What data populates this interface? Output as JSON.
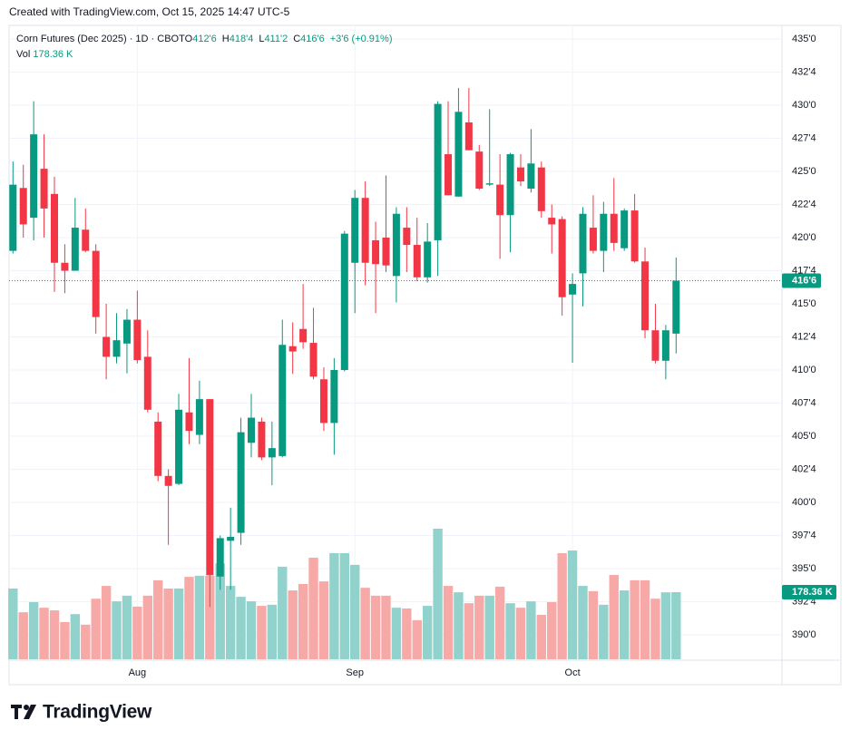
{
  "header": {
    "created": "Created with TradingView.com, Oct 15, 2025 14:47 UTC-5",
    "brand": "TradingView"
  },
  "chart_data": {
    "type": "candlestick",
    "title": "Corn Futures (Dec 2025) · 1D · CBOT",
    "legend": [
      {
        "label": "O",
        "value": "412'6"
      },
      {
        "label": "H",
        "value": "418'4"
      },
      {
        "label": "L",
        "value": "411'2"
      },
      {
        "label": "C",
        "value": "416'6"
      }
    ],
    "change": "+3'6 (+0.91%)",
    "volume_label": "Vol",
    "volume_value": "178.36 K",
    "categories": [
      null,
      null,
      null,
      null,
      null,
      null,
      null,
      null,
      null,
      null,
      null,
      null,
      "Aug",
      null,
      null,
      null,
      null,
      null,
      null,
      null,
      null,
      null,
      null,
      null,
      null,
      null,
      null,
      null,
      null,
      null,
      null,
      null,
      null,
      "Sep",
      null,
      null,
      null,
      null,
      null,
      null,
      null,
      null,
      null,
      null,
      null,
      null,
      null,
      null,
      null,
      null,
      null,
      null,
      null,
      null,
      "Oct",
      null,
      null,
      null,
      null,
      null,
      null,
      null,
      null,
      null,
      null
    ],
    "open": [
      419.0,
      423.75,
      421.5,
      425.2,
      423.3,
      418.1,
      417.5,
      420.6,
      419.0,
      412.5,
      411.0,
      412.0,
      413.8,
      411.0,
      406.1,
      402.0,
      401.4,
      406.8,
      405.1,
      407.8,
      394.4,
      397.1,
      397.7,
      404.5,
      406.1,
      403.4,
      403.5,
      411.8,
      413.1,
      412.05,
      409.3,
      406.0,
      410.0,
      418.1,
      423.0,
      419.8,
      420.0,
      417.1,
      420.75,
      419.45,
      417.0,
      419.8,
      426.3,
      423.1,
      428.7,
      426.5,
      424.0,
      424.0,
      421.7,
      425.3,
      423.7,
      425.3,
      421.5,
      421.4,
      415.7,
      417.3,
      420.75,
      419.0,
      421.8,
      419.2,
      422.05,
      418.2,
      413.0,
      410.7,
      412.75
    ],
    "high": [
      425.75,
      425.5,
      430.3,
      427.8,
      424.6,
      419.5,
      423.0,
      422.2,
      419.5,
      415.0,
      414.3,
      414.6,
      416.0,
      413.0,
      406.8,
      402.5,
      408.2,
      410.9,
      409.2,
      407.8,
      397.5,
      399.6,
      406.4,
      408.2,
      406.4,
      406.1,
      413.8,
      413.6,
      416.5,
      414.7,
      410.2,
      410.9,
      420.5,
      423.6,
      424.25,
      421.2,
      424.7,
      422.3,
      422.3,
      421.5,
      421.1,
      430.3,
      430.3,
      431.3,
      431.3,
      427.0,
      429.7,
      426.3,
      426.4,
      426.3,
      428.2,
      425.75,
      422.5,
      421.6,
      417.3,
      422.3,
      423.2,
      422.7,
      424.5,
      422.2,
      423.3,
      419.25,
      415.0,
      413.4,
      418.5
    ],
    "low": [
      418.8,
      420.0,
      419.8,
      420.0,
      415.9,
      415.8,
      417.5,
      418.9,
      412.75,
      409.3,
      410.5,
      409.75,
      410.5,
      406.8,
      401.6,
      396.8,
      401.3,
      404.4,
      404.4,
      392.1,
      393.4,
      393.4,
      396.8,
      403.4,
      403.2,
      401.3,
      403.4,
      409.7,
      411.6,
      409.3,
      405.4,
      403.6,
      409.9,
      414.3,
      416.4,
      414.3,
      417.4,
      415.1,
      417.4,
      416.7,
      416.6,
      417.1,
      423.2,
      423.1,
      426.6,
      423.6,
      423.9,
      418.4,
      418.9,
      423.9,
      423.4,
      421.5,
      418.8,
      414.1,
      410.55,
      414.8,
      418.8,
      417.4,
      419.0,
      419.0,
      418.1,
      412.4,
      410.5,
      409.3,
      411.25
    ],
    "close": [
      424.0,
      421.0,
      427.8,
      422.2,
      418.1,
      417.5,
      420.75,
      419.0,
      414.0,
      411.0,
      412.25,
      413.8,
      410.75,
      407.0,
      402.0,
      401.25,
      407.0,
      405.4,
      407.8,
      394.5,
      397.3,
      397.4,
      405.3,
      406.4,
      403.4,
      404.1,
      411.9,
      411.4,
      412.1,
      409.5,
      406.0,
      410.0,
      420.3,
      423.0,
      418.1,
      418.0,
      417.9,
      421.8,
      419.45,
      417.0,
      419.7,
      430.1,
      423.2,
      429.5,
      426.6,
      423.7,
      424.1,
      421.7,
      426.3,
      424.25,
      425.6,
      422.0,
      421.0,
      415.5,
      416.5,
      421.8,
      419.0,
      421.8,
      419.6,
      422.05,
      418.2,
      413.0,
      410.7,
      413.0,
      416.75
    ],
    "volume": [
      188,
      125,
      152,
      137,
      130,
      99,
      120,
      92,
      161,
      195,
      154,
      169,
      140,
      169,
      210,
      188,
      188,
      219,
      222,
      222,
      255,
      195,
      166,
      154,
      142,
      145,
      246,
      183,
      200,
      270,
      207,
      282,
      282,
      251,
      190,
      169,
      169,
      137,
      135,
      104,
      142,
      347,
      195,
      178,
      149,
      169,
      169,
      193,
      149,
      137,
      154,
      118,
      152,
      282,
      289,
      195,
      181,
      145,
      224,
      183,
      210,
      210,
      161,
      178,
      178.36
    ],
    "ylim": [
      388.15,
      436.03
    ],
    "yticks": [
      {
        "value": 390,
        "label": "390'0"
      },
      {
        "value": 392.5,
        "label": "392'4"
      },
      {
        "value": 395,
        "label": "395'0"
      },
      {
        "value": 397.5,
        "label": "397'4"
      },
      {
        "value": 400,
        "label": "400'0"
      },
      {
        "value": 402.5,
        "label": "402'4"
      },
      {
        "value": 405,
        "label": "405'0"
      },
      {
        "value": 407.5,
        "label": "407'4"
      },
      {
        "value": 410,
        "label": "410'0"
      },
      {
        "value": 412.5,
        "label": "412'4"
      },
      {
        "value": 415,
        "label": "415'0"
      },
      {
        "value": 417.5,
        "label": "417'4"
      },
      {
        "value": 420,
        "label": "420'0"
      },
      {
        "value": 422.5,
        "label": "422'4"
      },
      {
        "value": 425,
        "label": "425'0"
      },
      {
        "value": 427.5,
        "label": "427'4"
      },
      {
        "value": 430,
        "label": "430'0"
      },
      {
        "value": 432.5,
        "label": "432'4"
      },
      {
        "value": 435,
        "label": "435'0"
      }
    ],
    "grid": true,
    "up_color": "#089981",
    "down_color": "#f23645",
    "volume_up_color": "#92d2cc",
    "volume_down_color": "#f7a9a7"
  }
}
